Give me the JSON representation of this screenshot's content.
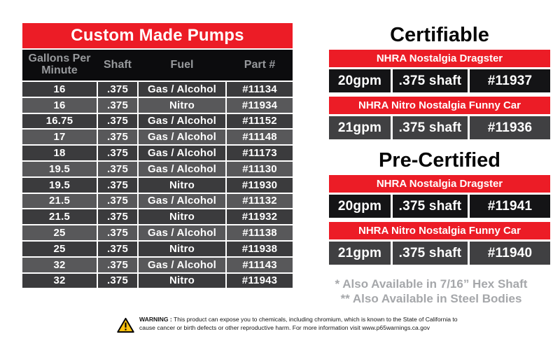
{
  "colors": {
    "accent_red": "#EC1C26",
    "table_header_bg": "#0C0C0E",
    "row_dark": "#3B3B3D",
    "row_light": "#58585A",
    "card_row_black": "#141416",
    "card_row_gray": "#404042",
    "header_text_gray": "#97999C",
    "footnote_gray": "#A5A7AA",
    "warning_yellow": "#FFC20E"
  },
  "pumps_table": {
    "title": "Custom Made Pumps",
    "headers": [
      "Gallons Per Minute",
      "Shaft",
      "Fuel",
      "Part #"
    ],
    "rows": [
      {
        "gpm": "16",
        "shaft": ".375",
        "fuel": "Gas / Alcohol",
        "part": "#11134"
      },
      {
        "gpm": "16",
        "shaft": ".375",
        "fuel": "Nitro",
        "part": "#11934"
      },
      {
        "gpm": "16.75",
        "shaft": ".375",
        "fuel": "Gas / Alcohol",
        "part": "#11152"
      },
      {
        "gpm": "17",
        "shaft": ".375",
        "fuel": "Gas / Alcohol",
        "part": "#11148"
      },
      {
        "gpm": "18",
        "shaft": ".375",
        "fuel": "Gas / Alcohol",
        "part": "#11173"
      },
      {
        "gpm": "19.5",
        "shaft": ".375",
        "fuel": "Gas / Alcohol",
        "part": "#11130"
      },
      {
        "gpm": "19.5",
        "shaft": ".375",
        "fuel": "Nitro",
        "part": "#11930"
      },
      {
        "gpm": "21.5",
        "shaft": ".375",
        "fuel": "Gas / Alcohol",
        "part": "#11132"
      },
      {
        "gpm": "21.5",
        "shaft": ".375",
        "fuel": "Nitro",
        "part": "#11932"
      },
      {
        "gpm": "25",
        "shaft": ".375",
        "fuel": "Gas / Alcohol",
        "part": "#11138"
      },
      {
        "gpm": "25",
        "shaft": ".375",
        "fuel": "Nitro",
        "part": "#11938"
      },
      {
        "gpm": "32",
        "shaft": ".375",
        "fuel": "Gas / Alcohol",
        "part": "#11143"
      },
      {
        "gpm": "32",
        "shaft": ".375",
        "fuel": "Nitro",
        "part": "#11943"
      }
    ]
  },
  "certifiable": {
    "title": "Certifiable",
    "cards": [
      {
        "title": "NHRA Nostalgia Dragster",
        "gpm": "20gpm",
        "shaft": ".375 shaft",
        "part": "#11937"
      },
      {
        "title": "NHRA Nitro Nostalgia Funny Car",
        "gpm": "21gpm",
        "shaft": ".375 shaft",
        "part": "#11936"
      }
    ]
  },
  "pre_certified": {
    "title": "Pre-Certified",
    "cards": [
      {
        "title": "NHRA Nostalgia Dragster",
        "gpm": "20gpm",
        "shaft": ".375 shaft",
        "part": "#11941"
      },
      {
        "title": "NHRA Nitro Nostalgia Funny Car",
        "gpm": "21gpm",
        "shaft": ".375 shaft",
        "part": "#11940"
      }
    ]
  },
  "footnotes": [
    "* Also Available in 7/16” Hex Shaft",
    "** Also Available in Steel Bodies"
  ],
  "warning": {
    "label": "WARNING :",
    "line1": "This product can expose you to chemicals, including chromium, which is known to the State of California to",
    "line2": "cause cancer or birth defects or other reproductive harm. For more information visit www.p65warnings.ca.gov"
  }
}
